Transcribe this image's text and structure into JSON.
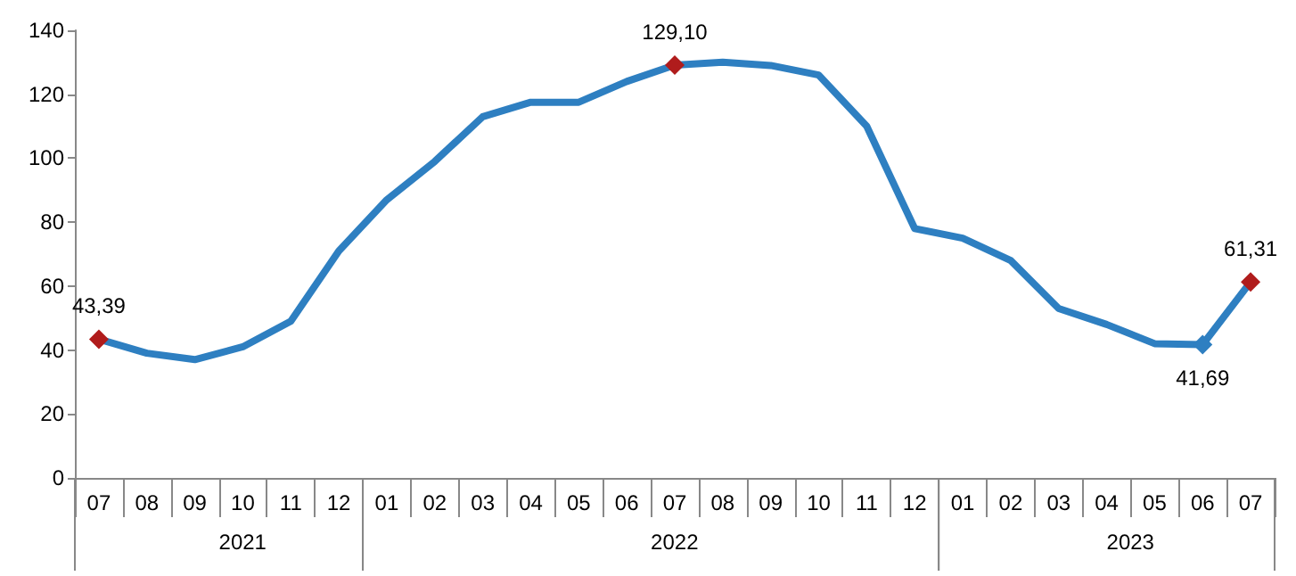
{
  "chart_data": {
    "type": "line",
    "categories": [
      "07",
      "08",
      "09",
      "10",
      "11",
      "12",
      "01",
      "02",
      "03",
      "04",
      "05",
      "06",
      "07",
      "08",
      "09",
      "10",
      "11",
      "12",
      "01",
      "02",
      "03",
      "04",
      "05",
      "06",
      "07"
    ],
    "annotations": [
      "2021",
      "2022",
      "2023"
    ],
    "series": [
      {
        "color": "#2e7fc1",
        "marker": "none",
        "values": [
          43.39,
          39,
          37,
          41,
          49,
          71,
          87,
          99,
          113,
          117.5,
          117.5,
          124,
          129.1,
          130,
          129,
          126,
          110,
          78,
          75,
          68,
          53,
          48,
          42,
          41.69,
          61.31
        ]
      },
      {
        "type": "scatter",
        "color": "#b01c1c",
        "values": [
          43.39,
          null,
          null,
          null,
          null,
          null,
          null,
          null,
          null,
          null,
          null,
          null,
          129.1,
          null,
          null,
          null,
          null,
          null,
          null,
          null,
          null,
          null,
          null,
          41.69,
          61.31
        ],
        "colors": [
          "#b01c1c",
          null,
          null,
          null,
          null,
          null,
          null,
          null,
          null,
          null,
          null,
          null,
          "#b01c1c",
          null,
          null,
          null,
          null,
          null,
          null,
          null,
          null,
          null,
          null,
          "#2e7fc1",
          "#b01c1c"
        ],
        "value_labels": [
          "43,39",
          null,
          null,
          null,
          null,
          null,
          null,
          null,
          null,
          null,
          null,
          null,
          "129,10",
          null,
          null,
          null,
          null,
          null,
          null,
          null,
          null,
          null,
          null,
          "41,69",
          "61,31"
        ]
      }
    ],
    "ylim": [
      0,
      140
    ],
    "yticks": [
      0,
      20,
      40,
      60,
      80,
      100,
      120,
      140
    ],
    "marker": "diamond",
    "line_style": "solid",
    "grid": false
  }
}
